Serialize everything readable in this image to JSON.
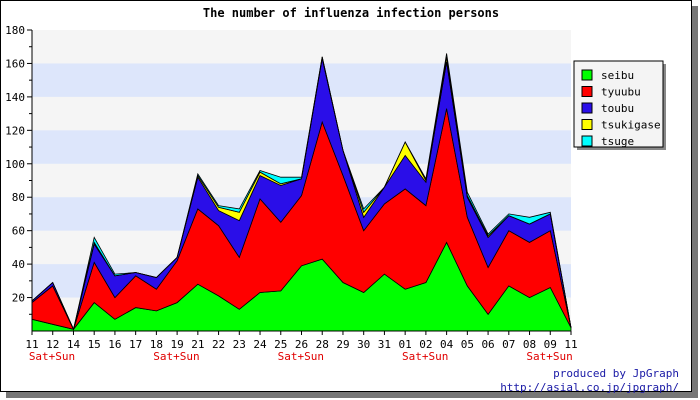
{
  "chart_data": {
    "type": "area",
    "stacked": true,
    "title": "The number of influenza infection persons",
    "xlabel": "",
    "ylabel": "",
    "ylim": [
      0,
      180
    ],
    "yticks": [
      20,
      40,
      60,
      80,
      100,
      120,
      140,
      160,
      180
    ],
    "grid": true,
    "legend_position": "top-right",
    "categories": [
      "11",
      "12",
      "14",
      "15",
      "16",
      "17",
      "18",
      "19",
      "21",
      "22",
      "23",
      "24",
      "25",
      "26",
      "28",
      "29",
      "30",
      "31",
      "01",
      "02",
      "04",
      "05",
      "06",
      "07",
      "08",
      "09",
      "11"
    ],
    "weekend_markers": [
      {
        "index": 0,
        "label": "Sat+Sun"
      },
      {
        "index": 6,
        "label": "Sat+Sun"
      },
      {
        "index": 12,
        "label": "Sat+Sun"
      },
      {
        "index": 18,
        "label": "Sat+Sun"
      },
      {
        "index": 24,
        "label": "Sat+Sun"
      }
    ],
    "series": [
      {
        "name": "seibu",
        "color": "#00ff00",
        "values": [
          7,
          4,
          1,
          17,
          7,
          14,
          12,
          17,
          28,
          21,
          13,
          23,
          24,
          39,
          43,
          29,
          23,
          34,
          25,
          29,
          53,
          27,
          10,
          27,
          20,
          26,
          2
        ]
      },
      {
        "name": "tyuubu",
        "color": "#ff0000",
        "values": [
          10,
          23,
          0,
          24,
          13,
          19,
          13,
          25,
          45,
          42,
          31,
          56,
          41,
          42,
          82,
          64,
          37,
          42,
          60,
          46,
          80,
          41,
          28,
          33,
          33,
          34,
          0
        ]
      },
      {
        "name": "toubu",
        "color": "#2a0ee8",
        "values": [
          1,
          2,
          0,
          11,
          13,
          2,
          7,
          2,
          19,
          9,
          22,
          14,
          22,
          10,
          38,
          15,
          8,
          10,
          20,
          14,
          28,
          12,
          18,
          9,
          11,
          10,
          0
        ]
      },
      {
        "name": "tsukigase",
        "color": "#ffff00",
        "values": [
          0,
          0,
          0,
          1,
          0,
          0,
          0,
          0,
          1,
          2,
          5,
          2,
          1,
          0,
          1,
          0,
          3,
          0,
          8,
          1,
          3,
          1,
          1,
          0,
          0,
          0,
          0
        ]
      },
      {
        "name": "tsuge",
        "color": "#00ffff",
        "values": [
          0,
          0,
          0,
          3,
          1,
          0,
          0,
          0,
          1,
          1,
          2,
          1,
          4,
          1,
          0,
          0,
          2,
          0,
          0,
          1,
          2,
          2,
          1,
          1,
          4,
          1,
          0
        ]
      }
    ]
  },
  "credits": {
    "line1": "produced by JpGraph",
    "line2": "http://asial.co.jp/jpgraph/"
  }
}
